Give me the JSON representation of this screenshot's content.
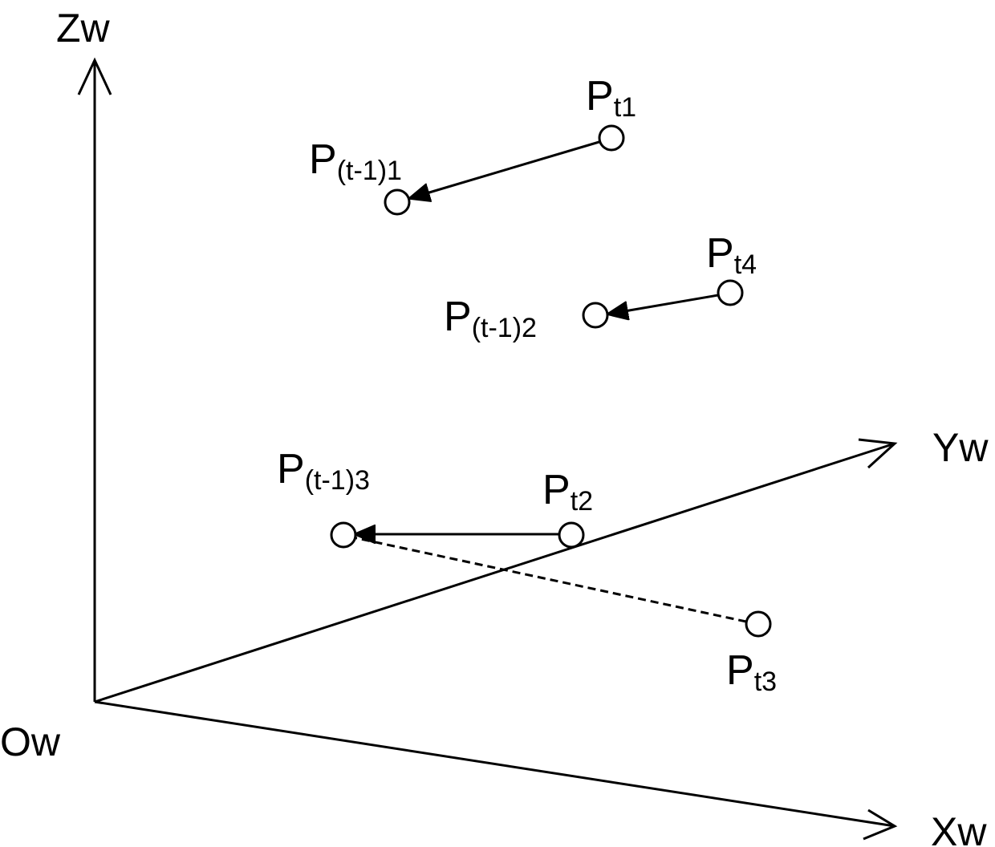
{
  "axes": {
    "z": "Zw",
    "y": "Yw",
    "x": "Xw",
    "origin": "Ow"
  },
  "points": [
    {
      "main": "P",
      "sub": "t1"
    },
    {
      "main": "P",
      "sub": "(t-1)1"
    },
    {
      "main": "P",
      "sub": "t4"
    },
    {
      "main": "P",
      "sub": "(t-1)2"
    },
    {
      "main": "P",
      "sub": "t2"
    },
    {
      "main": "P",
      "sub": "(t-1)3"
    },
    {
      "main": "P",
      "sub": "t3"
    }
  ]
}
